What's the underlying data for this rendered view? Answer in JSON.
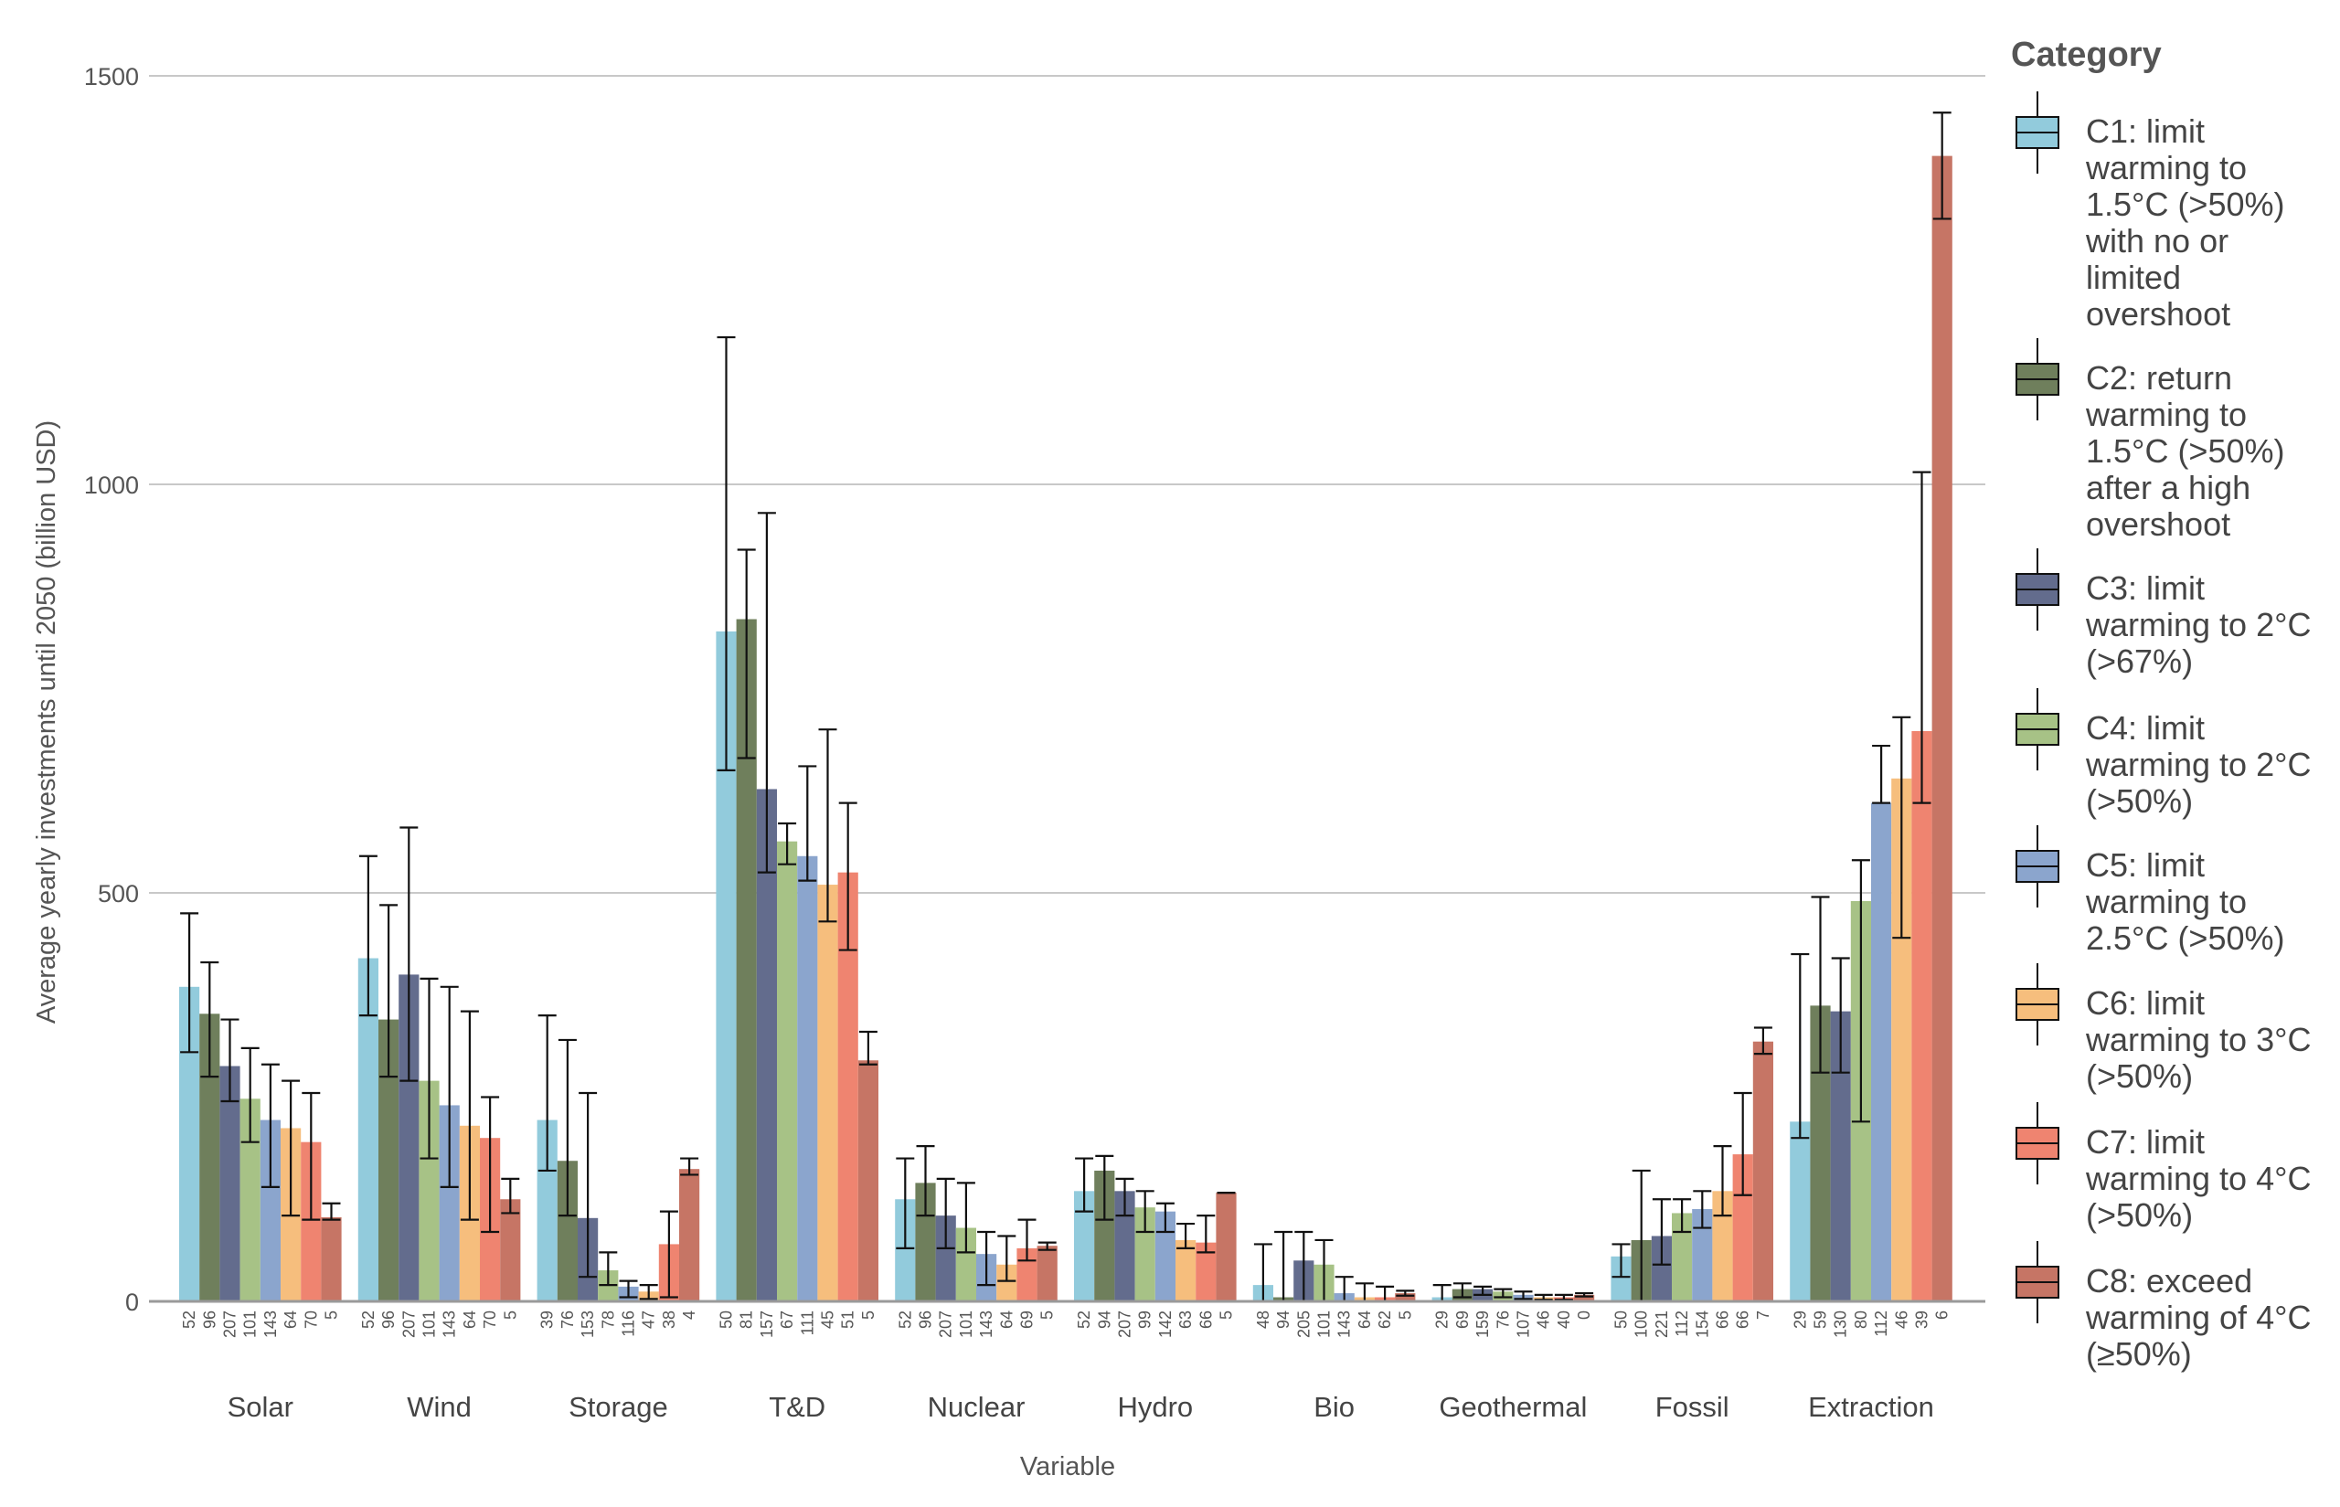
{
  "chart_data": {
    "type": "bar",
    "xlabel": "Variable",
    "ylabel": "Average yearly investments until 2050 (billion USD)",
    "ylim": [
      0,
      1500
    ],
    "yticks": [
      "0",
      "500",
      "1000",
      "1500"
    ],
    "grid": true,
    "legend_title": "Category",
    "legend_position": "right",
    "categories": [
      "Solar",
      "Wind",
      "Storage",
      "T&D",
      "Nuclear",
      "Hydro",
      "Bio",
      "Geothermal",
      "Fossil",
      "Extraction"
    ],
    "series": [
      {
        "name": "C1: limit warming to 1.5°C (>50%) with no or limited overshoot",
        "color": "#92cbdc",
        "values": [
          385,
          420,
          222,
          820,
          125,
          135,
          20,
          5,
          55,
          220
        ],
        "err_low": [
          305,
          350,
          160,
          650,
          65,
          110,
          0,
          0,
          30,
          200
        ],
        "err_high": [
          475,
          545,
          350,
          1180,
          175,
          175,
          70,
          20,
          70,
          425
        ],
        "n": [
          52,
          52,
          39,
          50,
          52,
          52,
          48,
          29,
          50,
          29
        ]
      },
      {
        "name": "C2: return warming to 1.5°C (>50%) after a high overshoot",
        "color": "#6f7f5c",
        "values": [
          352,
          345,
          172,
          835,
          145,
          160,
          5,
          15,
          75,
          362
        ],
        "err_low": [
          275,
          275,
          105,
          665,
          105,
          100,
          0,
          5,
          0,
          280
        ],
        "err_high": [
          415,
          485,
          320,
          920,
          190,
          178,
          85,
          22,
          160,
          495
        ],
        "n": [
          96,
          96,
          76,
          81,
          96,
          94,
          94,
          69,
          100,
          59
        ]
      },
      {
        "name": "C3: limit warming to 2°C (>67%)",
        "color": "#636c8d",
        "values": [
          288,
          400,
          102,
          627,
          105,
          135,
          50,
          15,
          80,
          355
        ],
        "err_low": [
          245,
          270,
          30,
          525,
          65,
          105,
          0,
          8,
          45,
          280
        ],
        "err_high": [
          345,
          580,
          255,
          965,
          150,
          150,
          85,
          18,
          125,
          420
        ],
        "n": [
          207,
          207,
          153,
          157,
          207,
          207,
          205,
          159,
          221,
          130
        ]
      },
      {
        "name": "C4: limit warming to 2°C (>50%)",
        "color": "#a7c286",
        "values": [
          248,
          270,
          38,
          563,
          90,
          115,
          45,
          12,
          108,
          490
        ],
        "err_low": [
          195,
          175,
          20,
          535,
          60,
          85,
          0,
          5,
          85,
          220
        ],
        "err_high": [
          310,
          395,
          60,
          585,
          145,
          135,
          75,
          15,
          125,
          540
        ],
        "n": [
          101,
          101,
          78,
          67,
          101,
          99,
          101,
          76,
          112,
          80
        ]
      },
      {
        "name": "C5: limit warming to 2.5°C (>50%)",
        "color": "#8ba5cd",
        "values": [
          222,
          240,
          18,
          545,
          58,
          110,
          10,
          8,
          113,
          610
        ],
        "err_low": [
          140,
          140,
          5,
          515,
          20,
          85,
          0,
          3,
          90,
          610
        ],
        "err_high": [
          290,
          385,
          25,
          655,
          85,
          120,
          30,
          12,
          135,
          680
        ],
        "n": [
          143,
          143,
          116,
          111,
          143,
          142,
          143,
          107,
          154,
          112
        ]
      },
      {
        "name": "C6: limit warming to 3°C (>50%)",
        "color": "#f6be7d",
        "values": [
          212,
          215,
          12,
          510,
          45,
          75,
          5,
          5,
          135,
          640
        ],
        "err_low": [
          105,
          100,
          3,
          465,
          25,
          65,
          0,
          2,
          105,
          445
        ],
        "err_high": [
          270,
          355,
          20,
          700,
          80,
          95,
          22,
          8,
          190,
          715
        ],
        "n": [
          64,
          64,
          47,
          45,
          64,
          63,
          64,
          46,
          66,
          46
        ]
      },
      {
        "name": "C7: limit warming to 4°C (>50%)",
        "color": "#ef8470",
        "values": [
          195,
          200,
          70,
          525,
          65,
          72,
          5,
          5,
          180,
          698
        ],
        "err_low": [
          100,
          85,
          5,
          430,
          50,
          60,
          0,
          2,
          130,
          610
        ],
        "err_high": [
          255,
          250,
          110,
          610,
          100,
          105,
          18,
          8,
          255,
          1015
        ],
        "n": [
          70,
          70,
          38,
          51,
          69,
          66,
          62,
          40,
          66,
          39
        ]
      },
      {
        "name": "C8: exceed warming of 4°C (≥50%)",
        "color": "#c67565",
        "values": [
          103,
          125,
          162,
          295,
          68,
          133,
          10,
          8,
          318,
          1402
        ],
        "err_low": [
          100,
          108,
          155,
          290,
          63,
          133,
          7,
          6,
          303,
          1325
        ],
        "err_high": [
          120,
          150,
          175,
          330,
          72,
          133,
          13,
          10,
          335,
          1455
        ],
        "n": [
          5,
          5,
          4,
          5,
          5,
          5,
          5,
          0,
          7,
          6
        ]
      }
    ]
  },
  "legend": {
    "entries": [
      [
        "C1: limit",
        "warming to",
        "1.5°C (>50%)",
        "with no or",
        "limited",
        "overshoot"
      ],
      [
        "C2: return",
        "warming to",
        "1.5°C (>50%)",
        "after a high",
        "overshoot"
      ],
      [
        "C3: limit",
        "warming to 2°C",
        "(>67%)"
      ],
      [
        "C4: limit",
        "warming to 2°C",
        "(>50%)"
      ],
      [
        "C5: limit",
        "warming to",
        "2.5°C (>50%)"
      ],
      [
        "C6: limit",
        "warming to 3°C",
        "(>50%)"
      ],
      [
        "C7: limit",
        "warming to 4°C",
        "(>50%)"
      ],
      [
        "C8: exceed",
        "warming of 4°C",
        "(≥50%)"
      ]
    ]
  }
}
